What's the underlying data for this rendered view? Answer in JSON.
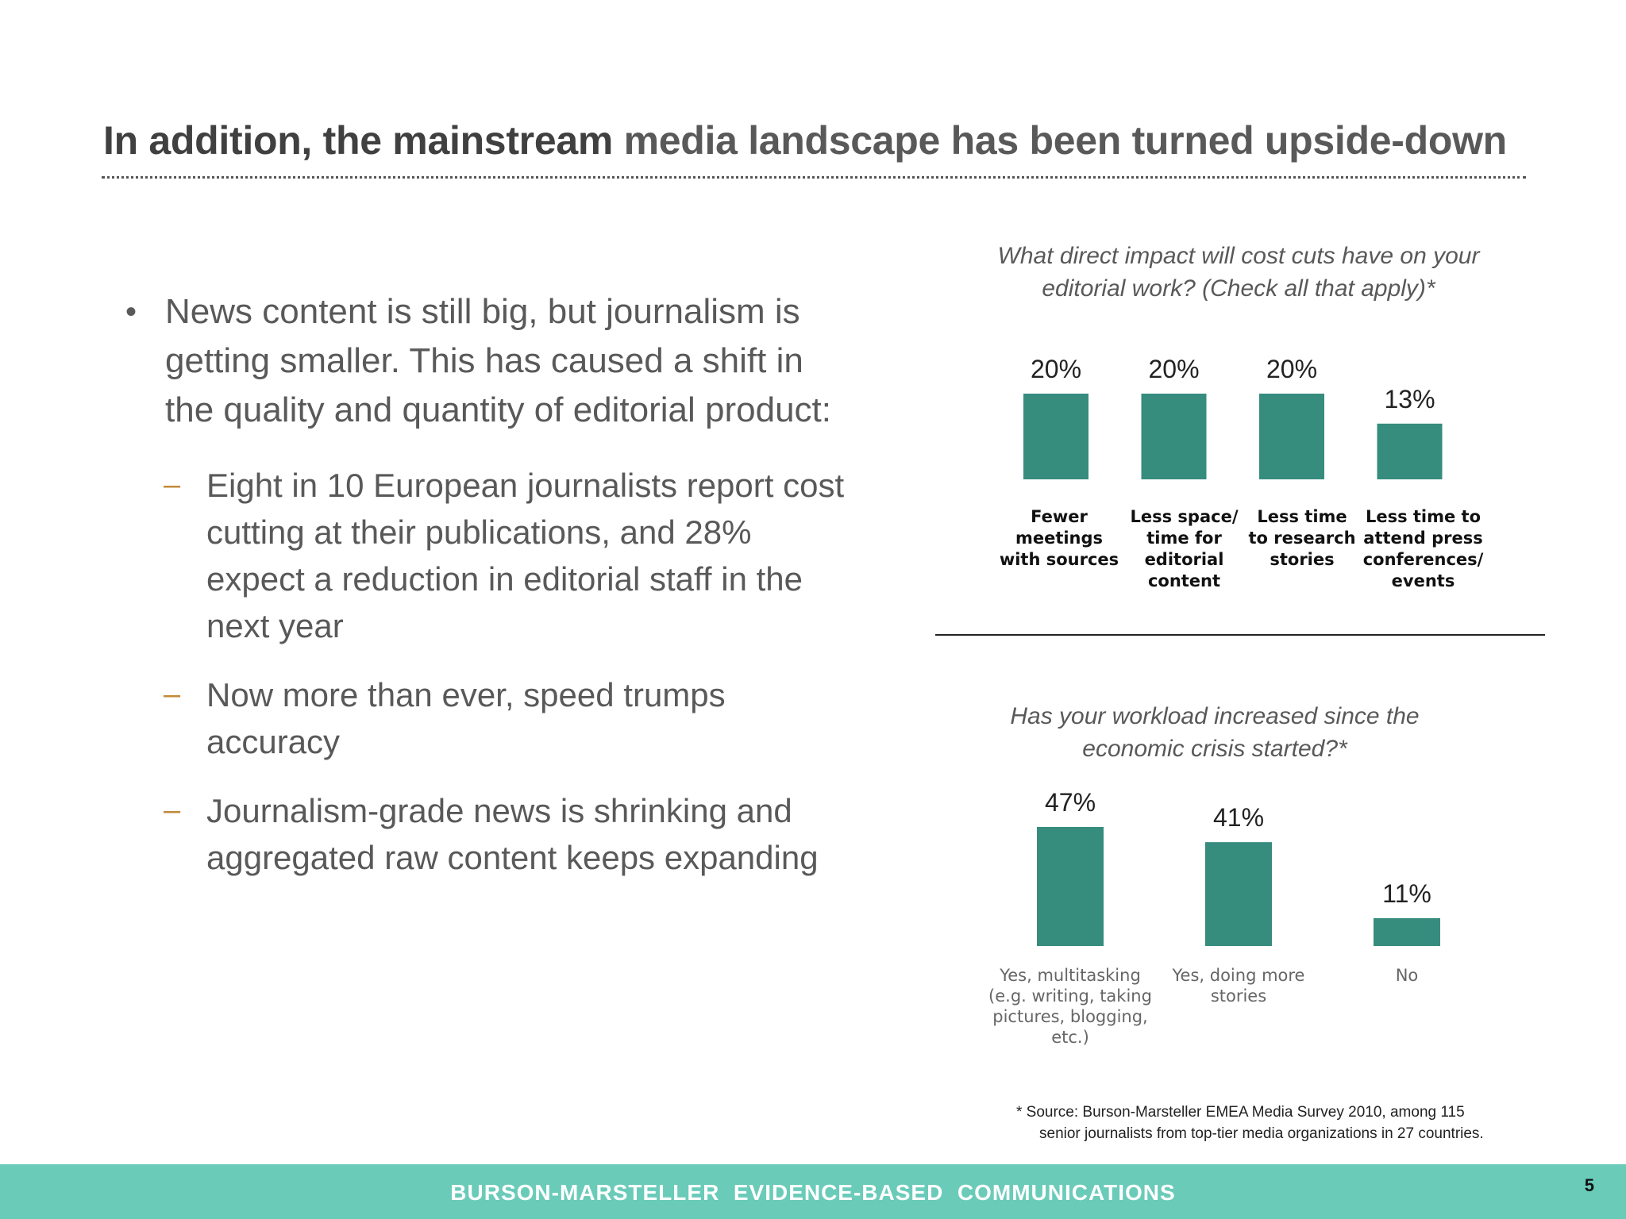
{
  "title": {
    "part1": "In addition, the mainstream ",
    "part2": "media landscape has been turned upside-down"
  },
  "bullets": {
    "main": "News content is still big, but journalism is getting smaller.  This has caused a shift in the quality and quantity of editorial product:",
    "bullet_symbol": "•",
    "dash_symbol": "–",
    "subs": [
      "Eight in 10 European journalists report cost cutting at their publications, and 28% expect a reduction in editorial staff in the next year",
      "Now more than ever, speed trumps accuracy",
      "Journalism-grade news is shrinking and aggregated raw content keeps expanding"
    ]
  },
  "colors": {
    "bar": "#368c7d",
    "footer": "#6acbb9",
    "dash": "#c28a3a"
  },
  "chart_data": [
    {
      "type": "bar",
      "title": "What direct impact will cost cuts have on your editorial work? (Check all that apply)*",
      "categories": [
        "Fewer meetings with sources",
        "Less space/ time for editorial content",
        "Less time to research stories",
        "Less time to attend press conferences/ events"
      ],
      "category_lines": [
        [
          "Fewer",
          "meetings",
          "with sources"
        ],
        [
          "Less space/",
          "time for",
          "editorial",
          "content"
        ],
        [
          "Less time",
          "to research",
          "stories"
        ],
        [
          "Less time to",
          "attend press",
          "conferences/",
          "events"
        ]
      ],
      "values": [
        20,
        20,
        20,
        13
      ],
      "data_labels": [
        "20%",
        "20%",
        "20%",
        "13%"
      ],
      "ylim": [
        0,
        20
      ],
      "grid": false
    },
    {
      "type": "bar",
      "title": "Has your workload increased since the economic crisis started?*",
      "categories": [
        "Yes, multitasking (e.g. writing, taking pictures, blogging, etc.)",
        "Yes, doing more stories",
        "No"
      ],
      "category_lines": [
        [
          "Yes, multitasking",
          "(e.g. writing, taking",
          "pictures, blogging,",
          "etc.)"
        ],
        [
          "Yes, doing more",
          "stories"
        ],
        [
          "No"
        ]
      ],
      "values": [
        47,
        41,
        11
      ],
      "data_labels": [
        "47%",
        "41%",
        "11%"
      ],
      "ylim": [
        0,
        47
      ],
      "grid": false
    }
  ],
  "footnote": {
    "line1": "* Source: Burson-Marsteller EMEA Media Survey  2010, among 115",
    "line2": "senior journalists from top-tier media organizations in 27 countries."
  },
  "footer": {
    "text": "BURSON-MARSTELLER  EVIDENCE-BASED  COMMUNICATIONS",
    "page_number": "5"
  }
}
